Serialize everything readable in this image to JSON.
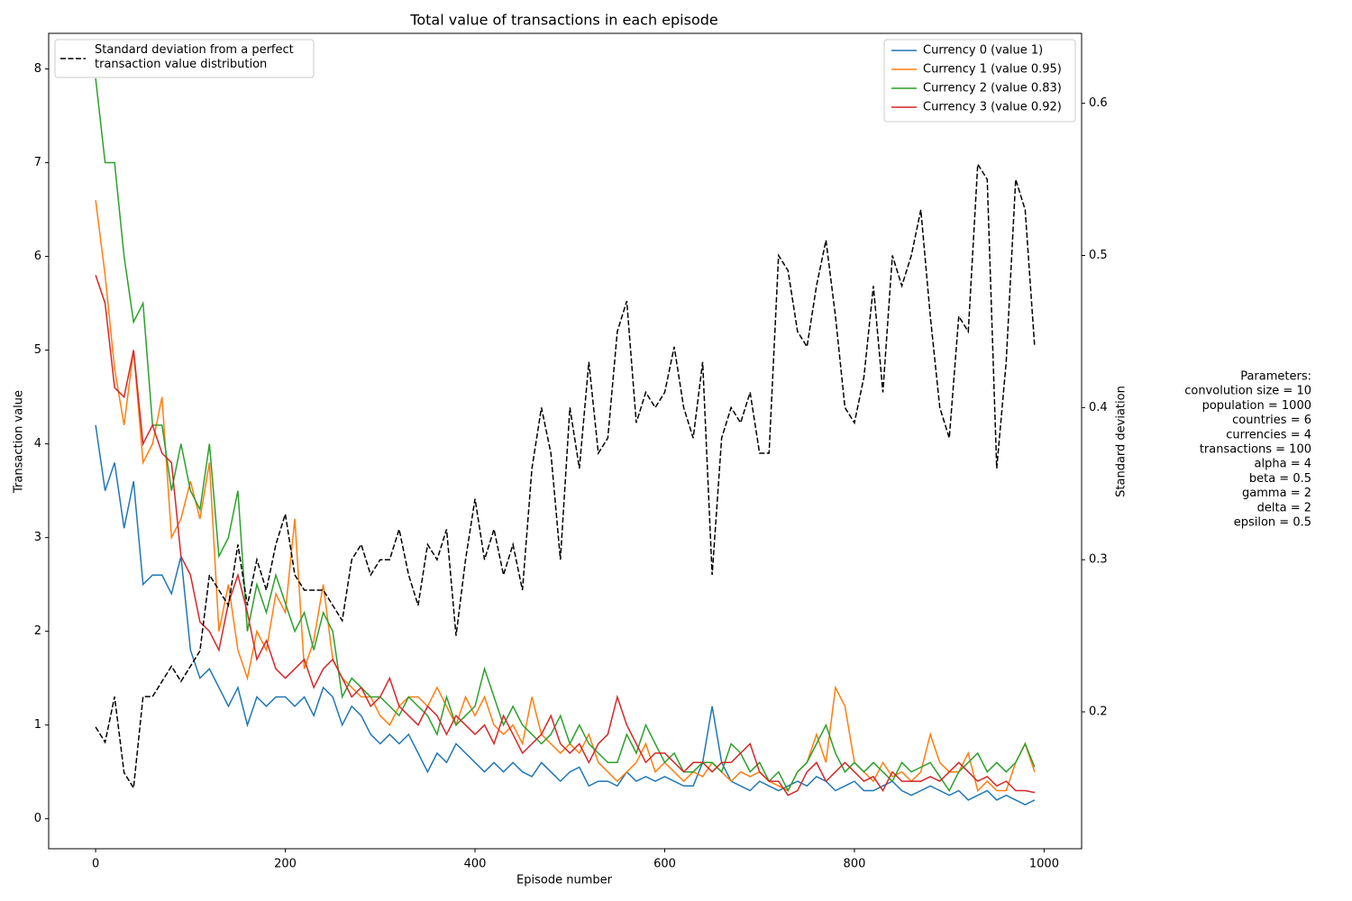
{
  "chart_data": {
    "type": "line",
    "title": "Total value of transactions in each episode",
    "xlabel": "Episode number",
    "ylabel": "Transaction value",
    "y2label": "Standard deviation",
    "x": [
      0,
      10,
      20,
      30,
      40,
      50,
      60,
      70,
      80,
      90,
      100,
      110,
      120,
      130,
      140,
      150,
      160,
      170,
      180,
      190,
      200,
      210,
      220,
      230,
      240,
      250,
      260,
      270,
      280,
      290,
      300,
      310,
      320,
      330,
      340,
      350,
      360,
      370,
      380,
      390,
      400,
      410,
      420,
      430,
      440,
      450,
      460,
      470,
      480,
      490,
      500,
      510,
      520,
      530,
      540,
      550,
      560,
      570,
      580,
      590,
      600,
      610,
      620,
      630,
      640,
      650,
      660,
      670,
      680,
      690,
      700,
      710,
      720,
      730,
      740,
      750,
      760,
      770,
      780,
      790,
      800,
      810,
      820,
      830,
      840,
      850,
      860,
      870,
      880,
      890,
      900,
      910,
      920,
      930,
      940,
      950,
      960,
      970,
      980,
      990
    ],
    "xlim": [
      -49.5,
      1039.5
    ],
    "xticks": [
      0,
      200,
      400,
      600,
      800,
      1000
    ],
    "ylim": [
      -0.32,
      8.38
    ],
    "yticks": [
      0,
      1,
      2,
      3,
      4,
      5,
      6,
      7,
      8
    ],
    "y2lim": [
      0.11,
      0.646
    ],
    "y2ticks": [
      0.2,
      0.3,
      0.4,
      0.5,
      0.6
    ],
    "legend_loc": "upper right",
    "legend2_loc": "upper left",
    "series": [
      {
        "name": "Currency 0 (value 1)",
        "color": "#1f77b4",
        "values": [
          4.2,
          3.5,
          3.8,
          3.1,
          3.6,
          2.5,
          2.6,
          2.6,
          2.4,
          2.8,
          1.8,
          1.5,
          1.6,
          1.4,
          1.2,
          1.4,
          1.0,
          1.3,
          1.2,
          1.3,
          1.3,
          1.2,
          1.3,
          1.1,
          1.4,
          1.3,
          1.0,
          1.2,
          1.1,
          0.9,
          0.8,
          0.9,
          0.8,
          0.9,
          0.7,
          0.5,
          0.7,
          0.6,
          0.8,
          0.7,
          0.6,
          0.5,
          0.6,
          0.5,
          0.6,
          0.5,
          0.45,
          0.6,
          0.5,
          0.4,
          0.5,
          0.55,
          0.35,
          0.4,
          0.4,
          0.35,
          0.5,
          0.4,
          0.45,
          0.4,
          0.45,
          0.4,
          0.35,
          0.35,
          0.6,
          1.2,
          0.6,
          0.4,
          0.35,
          0.3,
          0.4,
          0.35,
          0.3,
          0.35,
          0.4,
          0.35,
          0.45,
          0.4,
          0.3,
          0.35,
          0.4,
          0.3,
          0.3,
          0.35,
          0.4,
          0.3,
          0.25,
          0.3,
          0.35,
          0.3,
          0.25,
          0.3,
          0.2,
          0.25,
          0.3,
          0.2,
          0.25,
          0.2,
          0.15,
          0.2
        ]
      },
      {
        "name": "Currency 1 (value 0.95)",
        "color": "#ff7f0e",
        "values": [
          6.6,
          5.8,
          4.8,
          4.2,
          5.0,
          3.8,
          4.0,
          4.5,
          3.0,
          3.2,
          3.6,
          3.2,
          3.8,
          2.0,
          2.5,
          1.8,
          1.5,
          2.0,
          1.8,
          2.4,
          2.2,
          3.2,
          1.6,
          1.9,
          2.5,
          1.7,
          1.5,
          1.4,
          1.3,
          1.3,
          1.1,
          1.0,
          1.2,
          1.3,
          1.3,
          1.2,
          1.4,
          1.2,
          1.0,
          1.3,
          1.1,
          1.3,
          1.0,
          0.9,
          1.0,
          0.8,
          1.3,
          0.9,
          0.8,
          0.7,
          0.8,
          0.7,
          0.9,
          0.6,
          0.5,
          0.4,
          0.5,
          0.6,
          0.8,
          0.5,
          0.6,
          0.5,
          0.4,
          0.5,
          0.45,
          0.6,
          0.5,
          0.4,
          0.5,
          0.45,
          0.5,
          0.4,
          0.35,
          0.3,
          0.5,
          0.6,
          0.9,
          0.6,
          1.4,
          1.2,
          0.6,
          0.5,
          0.4,
          0.6,
          0.45,
          0.5,
          0.4,
          0.5,
          0.9,
          0.6,
          0.5,
          0.5,
          0.7,
          0.3,
          0.4,
          0.3,
          0.3,
          0.6,
          0.8,
          0.5
        ]
      },
      {
        "name": "Currency 2 (value 0.83)",
        "color": "#2ca02c",
        "values": [
          7.9,
          7.0,
          7.0,
          6.0,
          5.3,
          5.5,
          4.2,
          4.2,
          3.5,
          4.0,
          3.5,
          3.3,
          4.0,
          2.8,
          3.0,
          3.5,
          2.0,
          2.5,
          2.2,
          2.6,
          2.3,
          2.0,
          2.2,
          1.8,
          2.2,
          2.0,
          1.3,
          1.5,
          1.4,
          1.3,
          1.3,
          1.2,
          1.1,
          1.3,
          1.2,
          1.1,
          0.9,
          1.3,
          1.0,
          1.1,
          1.2,
          1.6,
          1.3,
          1.0,
          1.2,
          1.0,
          0.9,
          0.8,
          0.9,
          1.1,
          0.8,
          1.0,
          0.8,
          0.7,
          0.6,
          0.6,
          0.9,
          0.7,
          1.0,
          0.8,
          0.6,
          0.7,
          0.5,
          0.5,
          0.6,
          0.6,
          0.5,
          0.8,
          0.7,
          0.5,
          0.6,
          0.4,
          0.5,
          0.3,
          0.5,
          0.6,
          0.8,
          1.0,
          0.7,
          0.5,
          0.6,
          0.5,
          0.6,
          0.5,
          0.4,
          0.6,
          0.5,
          0.55,
          0.6,
          0.45,
          0.3,
          0.5,
          0.6,
          0.7,
          0.5,
          0.6,
          0.5,
          0.6,
          0.8,
          0.55
        ]
      },
      {
        "name": "Currency 3 (value 0.92)",
        "color": "#d62728",
        "values": [
          5.8,
          5.5,
          4.6,
          4.5,
          5.0,
          4.0,
          4.2,
          3.9,
          3.8,
          2.8,
          2.6,
          2.1,
          2.0,
          1.8,
          2.3,
          2.6,
          2.2,
          1.7,
          1.9,
          1.6,
          1.5,
          1.6,
          1.7,
          1.4,
          1.6,
          1.7,
          1.5,
          1.3,
          1.4,
          1.2,
          1.3,
          1.5,
          1.2,
          1.1,
          1.0,
          1.2,
          1.1,
          0.9,
          1.1,
          1.0,
          0.9,
          1.0,
          0.8,
          1.1,
          0.9,
          0.7,
          0.8,
          0.9,
          1.1,
          0.8,
          0.7,
          0.8,
          0.6,
          0.8,
          0.9,
          1.3,
          1.0,
          0.8,
          0.6,
          0.7,
          0.7,
          0.6,
          0.5,
          0.6,
          0.6,
          0.5,
          0.6,
          0.6,
          0.7,
          0.8,
          0.5,
          0.4,
          0.4,
          0.25,
          0.3,
          0.5,
          0.6,
          0.4,
          0.5,
          0.6,
          0.5,
          0.4,
          0.45,
          0.3,
          0.5,
          0.4,
          0.4,
          0.4,
          0.45,
          0.4,
          0.5,
          0.6,
          0.5,
          0.4,
          0.45,
          0.35,
          0.4,
          0.3,
          0.3,
          0.28
        ]
      },
      {
        "name": "Standard deviation from a perfect\ntransaction value distribution",
        "color": "#000000",
        "linestyle": "dashed",
        "axis": "y2",
        "values": [
          0.19,
          0.18,
          0.21,
          0.16,
          0.15,
          0.21,
          0.21,
          0.22,
          0.23,
          0.22,
          0.23,
          0.24,
          0.29,
          0.28,
          0.27,
          0.31,
          0.27,
          0.3,
          0.28,
          0.31,
          0.33,
          0.29,
          0.28,
          0.28,
          0.28,
          0.27,
          0.26,
          0.3,
          0.31,
          0.29,
          0.3,
          0.3,
          0.32,
          0.29,
          0.27,
          0.31,
          0.3,
          0.32,
          0.25,
          0.3,
          0.34,
          0.3,
          0.32,
          0.29,
          0.31,
          0.28,
          0.36,
          0.4,
          0.37,
          0.3,
          0.4,
          0.36,
          0.43,
          0.37,
          0.38,
          0.45,
          0.47,
          0.39,
          0.41,
          0.4,
          0.41,
          0.44,
          0.4,
          0.38,
          0.43,
          0.29,
          0.38,
          0.4,
          0.39,
          0.41,
          0.37,
          0.37,
          0.5,
          0.49,
          0.45,
          0.44,
          0.48,
          0.51,
          0.46,
          0.4,
          0.39,
          0.42,
          0.48,
          0.41,
          0.5,
          0.48,
          0.5,
          0.53,
          0.46,
          0.4,
          0.38,
          0.46,
          0.45,
          0.56,
          0.55,
          0.36,
          0.43,
          0.55,
          0.53,
          0.44
        ]
      }
    ],
    "annotation": [
      "Parameters:",
      "convolution size = 10",
      "population = 1000",
      "countries = 6",
      "currencies = 4",
      "transactions = 100",
      "alpha = 4",
      "beta = 0.5",
      "gamma = 2",
      "delta = 2",
      "epsilon = 0.5"
    ]
  }
}
